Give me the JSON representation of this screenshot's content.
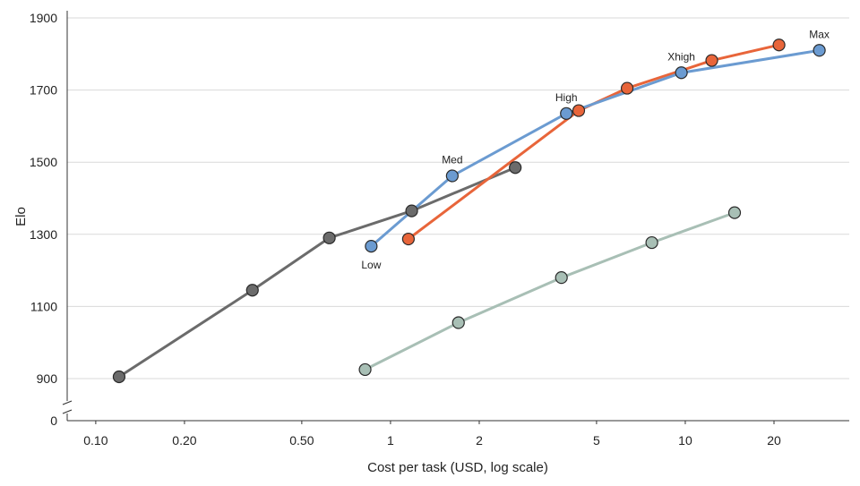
{
  "chart_data": {
    "type": "line",
    "title": "",
    "xlabel": "Cost per task (USD, log scale)",
    "ylabel": "Elo",
    "x_scale": "log",
    "xlim": [
      0.08,
      36
    ],
    "ylim": [
      900,
      1900
    ],
    "y_axis_break": true,
    "grid": "horizontal",
    "legend": "none",
    "x_ticks": [
      {
        "value": 0.1,
        "label": "0.10"
      },
      {
        "value": 0.2,
        "label": "0.20"
      },
      {
        "value": 0.5,
        "label": "0.50"
      },
      {
        "value": 1,
        "label": "1"
      },
      {
        "value": 2,
        "label": "2"
      },
      {
        "value": 5,
        "label": "5"
      },
      {
        "value": 10,
        "label": "10"
      },
      {
        "value": 20,
        "label": "20"
      }
    ],
    "y_ticks": [
      {
        "value": 900,
        "label": "900"
      },
      {
        "value": 1100,
        "label": "1100"
      },
      {
        "value": 1300,
        "label": "1300"
      },
      {
        "value": 1500,
        "label": "1500"
      },
      {
        "value": 1700,
        "label": "1700"
      },
      {
        "value": 1900,
        "label": "1900"
      }
    ],
    "y_zero_label": "0",
    "series": [
      {
        "color": "#6b6b6b",
        "x": [
          0.12,
          0.34,
          0.62,
          1.18,
          2.65
        ],
        "y": [
          905,
          1145,
          1290,
          1365,
          1485
        ],
        "labels": [
          "",
          "",
          "",
          "",
          ""
        ]
      },
      {
        "color": "#a8bfb5",
        "x": [
          0.82,
          1.7,
          3.8,
          7.7,
          14.7
        ],
        "y": [
          925,
          1055,
          1180,
          1277,
          1360
        ],
        "labels": [
          "",
          "",
          "",
          "",
          ""
        ]
      },
      {
        "color": "#e8653a",
        "x": [
          1.15,
          4.35,
          6.35,
          12.3,
          20.8
        ],
        "y": [
          1287,
          1643,
          1705,
          1782,
          1825
        ],
        "labels": [
          "",
          "",
          "",
          "",
          ""
        ]
      },
      {
        "color": "#6b9bd1",
        "x": [
          0.86,
          1.62,
          3.95,
          9.7,
          28.5
        ],
        "y": [
          1267,
          1462,
          1635,
          1748,
          1810
        ],
        "labels": [
          "Low",
          "Med",
          "High",
          "Xhigh",
          "Max"
        ]
      }
    ]
  }
}
